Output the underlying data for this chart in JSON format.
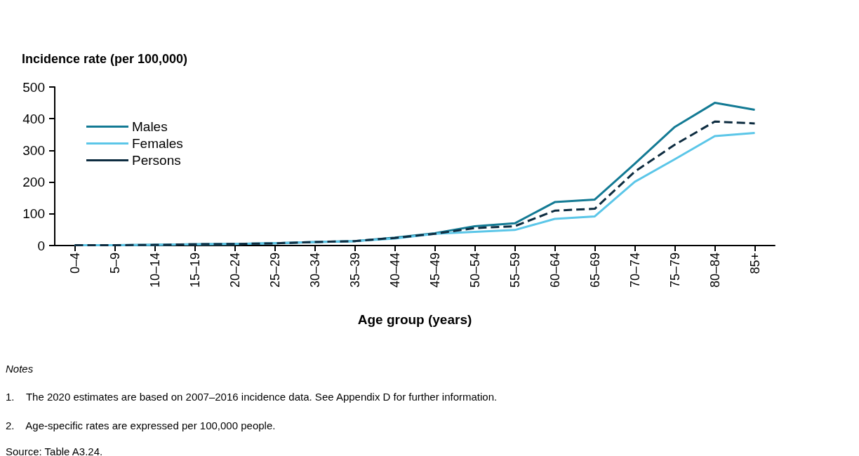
{
  "chart_data": {
    "type": "line",
    "ylabel": "Incidence rate (per 100,000)",
    "xlabel": "Age group (years)",
    "categories": [
      "0–4",
      "5–9",
      "10–14",
      "15–19",
      "20–24",
      "25–29",
      "30–34",
      "35–39",
      "40–44",
      "45–49",
      "50–54",
      "55–59",
      "60–64",
      "65–69",
      "70–74",
      "75–79",
      "80–84",
      "85+"
    ],
    "series": [
      {
        "name": "Males",
        "color": "#137a94",
        "line_style": "solid",
        "values": [
          1,
          1,
          2,
          4,
          5,
          7,
          11,
          14,
          25,
          39,
          61,
          70,
          137,
          145,
          258,
          374,
          450,
          428
        ]
      },
      {
        "name": "Females",
        "color": "#5bc6e8",
        "line_style": "solid",
        "values": [
          1,
          1,
          2,
          4,
          5,
          7,
          11,
          14,
          22,
          37,
          43,
          49,
          84,
          92,
          201,
          272,
          345,
          355
        ]
      },
      {
        "name": "Persons",
        "color": "#0d2c40",
        "line_style": "dashed",
        "values": [
          1,
          1,
          2,
          4,
          5,
          7,
          11,
          14,
          24,
          37,
          55,
          61,
          110,
          116,
          233,
          318,
          391,
          385
        ]
      }
    ],
    "ylim": [
      0,
      500
    ],
    "yticks": [
      0,
      100,
      200,
      300,
      400,
      500
    ],
    "grid": false,
    "legend": "top left",
    "marker": "none",
    "annotations": [
      "Notes",
      "1.    The 2020 estimates are based on 2007–2016 incidence data. See Appendix D for further information.",
      "2.    Age-specific rates are expressed per 100,000 people.",
      "Source: Table A3.24."
    ]
  }
}
